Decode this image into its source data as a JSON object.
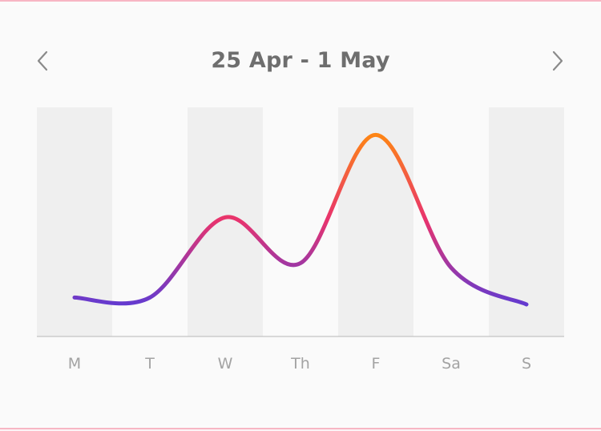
{
  "header": {
    "title": "25 Apr - 1 May",
    "prev_icon": "chevron-left-icon",
    "next_icon": "chevron-right-icon"
  },
  "colors": {
    "low": "#5b3bd6",
    "mid": "#e8336e",
    "high": "#ff8a10",
    "band": "#efefef",
    "axis": "#cccccc"
  },
  "chart_data": {
    "type": "line",
    "categories": [
      "M",
      "T",
      "W",
      "Th",
      "F",
      "Sa",
      "S"
    ],
    "values": [
      0.17,
      0.17,
      0.52,
      0.32,
      0.88,
      0.3,
      0.14
    ],
    "ylim": [
      0,
      1
    ],
    "grid": false,
    "shaded_columns": [
      "M",
      "W",
      "F",
      "S"
    ]
  }
}
